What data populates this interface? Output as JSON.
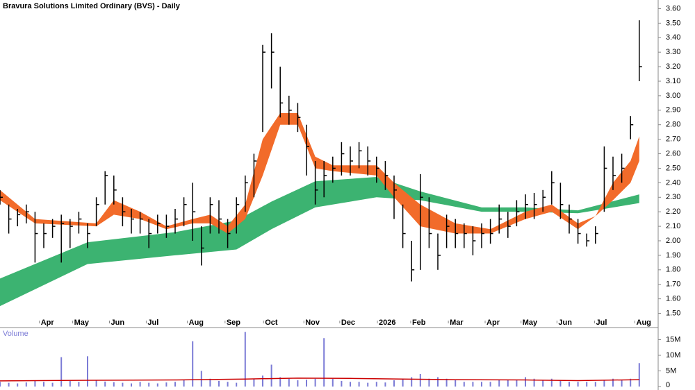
{
  "chart_data": {
    "type": "ohlc",
    "title": "Bravura Solutions Limited Ordinary (BVS) - Daily",
    "color": "#000000",
    "xlim": [
      0,
      75
    ],
    "xticks": [
      {
        "value": 4.5,
        "label": "Apr"
      },
      {
        "value": 8.3,
        "label": "May"
      },
      {
        "value": 12.5,
        "label": "Jun"
      },
      {
        "value": 16.7,
        "label": "Jul"
      },
      {
        "value": 21.4,
        "label": "Aug"
      },
      {
        "value": 25.7,
        "label": "Sep"
      },
      {
        "value": 30.1,
        "label": "Oct"
      },
      {
        "value": 34.7,
        "label": "Nov"
      },
      {
        "value": 38.8,
        "label": "Dec"
      },
      {
        "value": 43.1,
        "label": "2026"
      },
      {
        "value": 46.9,
        "label": "Feb"
      },
      {
        "value": 51.2,
        "label": "Mar"
      },
      {
        "value": 55.4,
        "label": "Apr"
      },
      {
        "value": 59.5,
        "label": "May"
      },
      {
        "value": 63.6,
        "label": "Jun"
      },
      {
        "value": 67.9,
        "label": "Jul"
      },
      {
        "value": 72.5,
        "label": "Aug"
      }
    ],
    "ylim": [
      1.45,
      3.65
    ],
    "yticks": [
      {
        "value": 1.5,
        "label": "1.50"
      },
      {
        "value": 1.6,
        "label": "1.60"
      },
      {
        "value": 1.7,
        "label": "1.70"
      },
      {
        "value": 1.8,
        "label": "1.80"
      },
      {
        "value": 1.9,
        "label": "1.90"
      },
      {
        "value": 2.0,
        "label": "2.00"
      },
      {
        "value": 2.1,
        "label": "2.10"
      },
      {
        "value": 2.2,
        "label": "2.20"
      },
      {
        "value": 2.3,
        "label": "2.30"
      },
      {
        "value": 2.4,
        "label": "2.40"
      },
      {
        "value": 2.5,
        "label": "2.50"
      },
      {
        "value": 2.6,
        "label": "2.60"
      },
      {
        "value": 2.7,
        "label": "2.70"
      },
      {
        "value": 2.8,
        "label": "2.80"
      },
      {
        "value": 2.9,
        "label": "2.90"
      },
      {
        "value": 3.0,
        "label": "3.00"
      },
      {
        "value": 3.1,
        "label": "3.10"
      },
      {
        "value": 3.2,
        "label": "3.20"
      },
      {
        "value": 3.3,
        "label": "3.30"
      },
      {
        "value": 3.4,
        "label": "3.40"
      },
      {
        "value": 3.5,
        "label": "3.50"
      },
      {
        "value": 3.6,
        "label": "3.60"
      }
    ],
    "close": [
      2.3,
      2.15,
      2.18,
      2.2,
      2.05,
      2.05,
      2.1,
      2.12,
      2.1,
      2.15,
      2.05,
      2.25,
      2.45,
      2.35,
      2.2,
      2.15,
      2.15,
      2.05,
      2.12,
      2.1,
      2.15,
      2.25,
      2.2,
      1.95,
      2.25,
      2.15,
      2.05,
      2.25,
      2.4,
      2.55,
      3.3,
      3.3,
      2.95,
      2.9,
      2.85,
      2.65,
      2.35,
      2.45,
      2.5,
      2.6,
      2.55,
      2.62,
      2.55,
      2.5,
      2.45,
      2.35,
      2.05,
      1.8,
      2.3,
      2.05,
      1.9,
      2.1,
      2.05,
      2.05,
      2.0,
      2.05,
      2.05,
      2.15,
      2.1,
      2.2,
      2.25,
      2.25,
      2.3,
      2.4,
      2.25,
      2.15,
      2.05,
      2.0,
      2.05,
      2.5,
      2.45,
      2.5,
      2.8,
      3.2
    ],
    "high": [
      2.35,
      2.25,
      2.22,
      2.25,
      2.2,
      2.12,
      2.15,
      2.18,
      2.15,
      2.2,
      2.12,
      2.3,
      2.48,
      2.45,
      2.3,
      2.22,
      2.2,
      2.15,
      2.18,
      2.18,
      2.22,
      2.3,
      2.4,
      2.1,
      2.3,
      2.28,
      2.15,
      2.3,
      2.45,
      2.6,
      3.35,
      3.43,
      3.2,
      3.0,
      2.95,
      2.8,
      2.55,
      2.55,
      2.58,
      2.68,
      2.65,
      2.68,
      2.65,
      2.58,
      2.55,
      2.45,
      2.25,
      2.0,
      2.46,
      2.3,
      2.05,
      2.18,
      2.15,
      2.12,
      2.1,
      2.12,
      2.15,
      2.25,
      2.2,
      2.28,
      2.32,
      2.33,
      2.35,
      2.48,
      2.4,
      2.25,
      2.15,
      2.05,
      2.1,
      2.65,
      2.58,
      2.6,
      2.86,
      3.52
    ],
    "low": [
      2.25,
      2.05,
      2.1,
      2.12,
      1.85,
      1.95,
      2.02,
      1.85,
      1.95,
      2.05,
      1.95,
      2.1,
      2.25,
      2.25,
      2.1,
      2.05,
      2.05,
      1.95,
      2.05,
      2.02,
      2.05,
      2.1,
      2.0,
      1.83,
      2.05,
      2.05,
      1.95,
      2.05,
      2.2,
      2.3,
      2.75,
      3.05,
      2.85,
      2.8,
      2.75,
      2.45,
      2.25,
      2.3,
      2.4,
      2.45,
      2.45,
      2.5,
      2.45,
      2.4,
      2.35,
      2.15,
      1.95,
      1.72,
      1.8,
      1.95,
      1.8,
      1.95,
      1.95,
      1.95,
      1.9,
      1.95,
      1.98,
      2.05,
      2.02,
      2.1,
      2.15,
      2.15,
      2.2,
      2.25,
      2.15,
      2.05,
      1.98,
      1.96,
      1.98,
      2.2,
      2.35,
      2.4,
      2.7,
      3.1
    ],
    "bands": [
      {
        "color": "#3cb371",
        "x": [
          0,
          10,
          20,
          27,
          31,
          36,
          43,
          48,
          55,
          60,
          66,
          73
        ],
        "upper": [
          1.74,
          1.99,
          2.06,
          2.14,
          2.27,
          2.41,
          2.44,
          2.34,
          2.23,
          2.23,
          2.21,
          2.32
        ],
        "lower": [
          1.55,
          1.84,
          1.9,
          1.94,
          2.08,
          2.23,
          2.3,
          2.28,
          2.2,
          2.2,
          2.19,
          2.26
        ]
      },
      {
        "color": "#f26b2a",
        "x": [
          0,
          4,
          11,
          13,
          16,
          19,
          22,
          24,
          26,
          28,
          30,
          32,
          34,
          36,
          38,
          43,
          45,
          48,
          52,
          56,
          60,
          63,
          66,
          68,
          70,
          72,
          73
        ],
        "upper": [
          2.35,
          2.15,
          2.12,
          2.28,
          2.2,
          2.1,
          2.15,
          2.18,
          2.1,
          2.25,
          2.7,
          2.88,
          2.88,
          2.58,
          2.52,
          2.52,
          2.4,
          2.25,
          2.12,
          2.08,
          2.2,
          2.25,
          2.12,
          2.17,
          2.4,
          2.55,
          2.72
        ],
        "lower": [
          2.28,
          2.12,
          2.1,
          2.18,
          2.15,
          2.08,
          2.12,
          2.12,
          2.05,
          2.15,
          2.45,
          2.8,
          2.8,
          2.5,
          2.48,
          2.45,
          2.3,
          2.1,
          2.05,
          2.05,
          2.15,
          2.2,
          2.08,
          2.17,
          2.28,
          2.4,
          2.55
        ]
      }
    ],
    "volume": {
      "title": "Volume",
      "color": "#7b7bd6",
      "ylim": [
        0,
        18000000
      ],
      "yticks": [
        {
          "value": 0,
          "label": "0"
        },
        {
          "value": 5000000,
          "label": "5M"
        },
        {
          "value": 10000000,
          "label": "10M"
        },
        {
          "value": 15000000,
          "label": "15M"
        }
      ],
      "values": [
        1500000,
        1200000,
        1000000,
        1300000,
        2000000,
        1500000,
        1200000,
        9400000,
        1800000,
        1500000,
        9700000,
        2000000,
        1600000,
        1400000,
        1200000,
        1000000,
        1500000,
        1200000,
        1000000,
        1300000,
        1500000,
        2000000,
        14500000,
        5000000,
        2500000,
        1800000,
        1500000,
        1200000,
        17500000,
        2500000,
        3500000,
        7000000,
        3000000,
        2500000,
        2000000,
        2200000,
        2500000,
        15500000,
        2500000,
        1800000,
        1500000,
        1500000,
        1200000,
        1500000,
        1300000,
        2000000,
        2500000,
        3000000,
        4000000,
        2500000,
        3000000,
        2500000,
        2000000,
        1500000,
        1500000,
        1500000,
        1500000,
        2000000,
        2000000,
        2000000,
        3000000,
        2500000,
        2000000,
        2500000,
        2000000,
        1500000,
        1500000,
        1500000,
        1500000,
        2000000,
        2500000,
        2000000,
        2500000,
        7500000
      ],
      "ma_color": "#cc0000",
      "ma_x": [
        0,
        10,
        20,
        28,
        34,
        40,
        46,
        52,
        60,
        66,
        73
      ],
      "ma": [
        1800000,
        2000000,
        2100000,
        2400000,
        2700000,
        2600000,
        2400000,
        2200000,
        2100000,
        1900000,
        2200000
      ]
    }
  }
}
